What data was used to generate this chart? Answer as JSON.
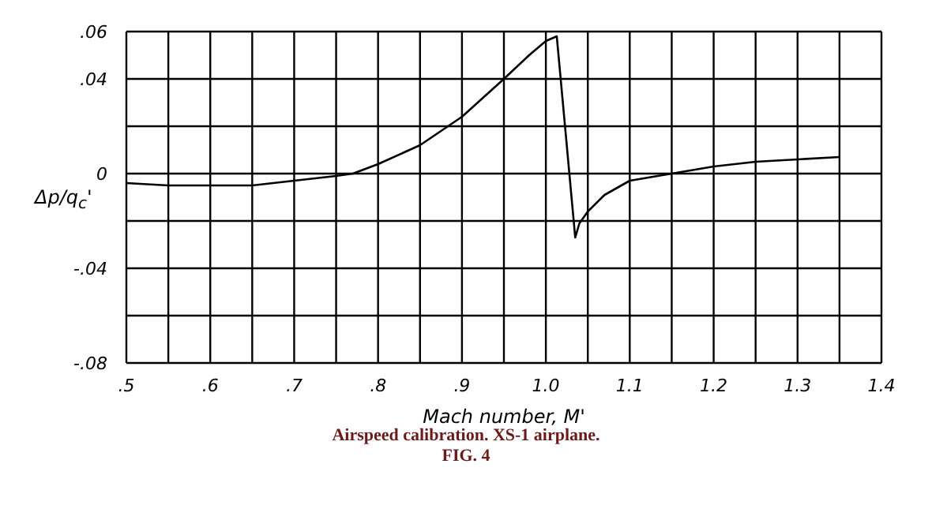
{
  "chart_data": {
    "type": "line",
    "title": "Airspeed calibration. XS-1 airplane.",
    "annotations": [
      "FIG. 4"
    ],
    "xlabel": "Mach number, M'",
    "ylabel": "Δp/q$_{c}$'",
    "x": [
      0.5,
      0.55,
      0.6,
      0.65,
      0.7,
      0.75,
      0.77,
      0.8,
      0.85,
      0.9,
      0.95,
      0.98,
      1.0,
      1.013,
      1.035,
      1.04,
      1.05,
      1.07,
      1.1,
      1.15,
      1.2,
      1.25,
      1.3,
      1.35
    ],
    "series": [
      {
        "color": "#000000",
        "values": [
          -0.004,
          -0.005,
          -0.005,
          -0.005,
          -0.003,
          -0.001,
          0,
          0.004,
          0.012,
          0.024,
          0.04,
          0.05,
          0.056,
          0.058,
          -0.027,
          -0.021,
          -0.016,
          -0.009,
          -0.003,
          0,
          0.003,
          0.005,
          0.006,
          0.007
        ]
      }
    ],
    "xlim": [
      0.5,
      1.4
    ],
    "ylim": [
      -0.08,
      0.06
    ],
    "xticks": [
      {
        "value": 0.5,
        "label": ".5"
      },
      {
        "value": 0.55,
        "label": null
      },
      {
        "value": 0.6,
        "label": ".6"
      },
      {
        "value": 0.65,
        "label": null
      },
      {
        "value": 0.7,
        "label": ".7"
      },
      {
        "value": 0.75,
        "label": null
      },
      {
        "value": 0.8,
        "label": ".8"
      },
      {
        "value": 0.85,
        "label": null
      },
      {
        "value": 0.9,
        "label": ".9"
      },
      {
        "value": 0.95,
        "label": null
      },
      {
        "value": 1.0,
        "label": "1.0"
      },
      {
        "value": 1.05,
        "label": null
      },
      {
        "value": 1.1,
        "label": "1.1"
      },
      {
        "value": 1.15,
        "label": null
      },
      {
        "value": 1.2,
        "label": "1.2"
      },
      {
        "value": 1.25,
        "label": null
      },
      {
        "value": 1.3,
        "label": "1.3"
      },
      {
        "value": 1.35,
        "label": null
      },
      {
        "value": 1.4,
        "label": "1.4"
      }
    ],
    "yticks": [
      {
        "value": -0.08,
        "label": "-.08"
      },
      {
        "value": -0.06,
        "label": null
      },
      {
        "value": -0.04,
        "label": "-.04"
      },
      {
        "value": -0.02,
        "label": null
      },
      {
        "value": 0,
        "label": "0"
      },
      {
        "value": 0.02,
        "label": null
      },
      {
        "value": 0.04,
        "label": ".04"
      },
      {
        "value": 0.06,
        "label": ".06"
      }
    ],
    "grid": true,
    "marker": "none",
    "line_style": "solid",
    "legend": false
  }
}
